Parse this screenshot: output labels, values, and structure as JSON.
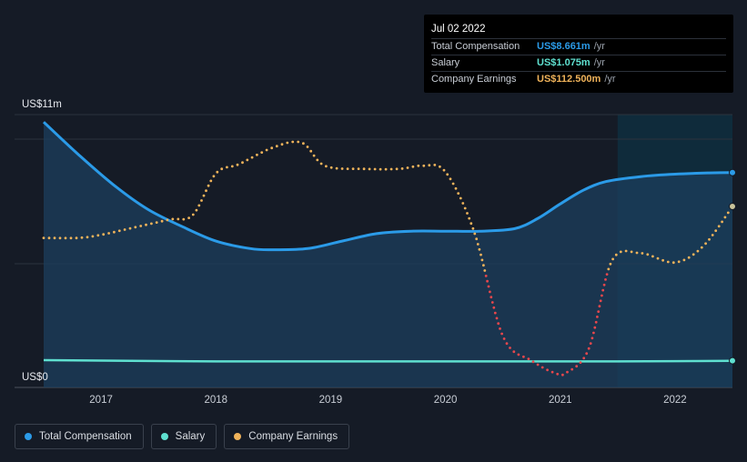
{
  "tooltip": {
    "date": "Jul 02 2022",
    "rows": [
      {
        "label": "Total Compensation",
        "value": "US$8.661m",
        "unit": "/yr",
        "color": "#2b9be8"
      },
      {
        "label": "Salary",
        "value": "US$1.075m",
        "unit": "/yr",
        "color": "#5fe0d0"
      },
      {
        "label": "Company Earnings",
        "value": "US$112.500m",
        "unit": "/yr",
        "color": "#f0b35a"
      }
    ]
  },
  "legend": [
    {
      "label": "Total Compensation",
      "color": "#2b9be8"
    },
    {
      "label": "Salary",
      "color": "#5fe0d0"
    },
    {
      "label": "Company Earnings",
      "color": "#f0b35a"
    }
  ],
  "chart_data": {
    "type": "line",
    "title": "",
    "xlabel": "",
    "ylabel": "",
    "ylim": [
      0,
      11
    ],
    "xlim": [
      2016.5,
      2022.5
    ],
    "y_tick_labels": {
      "top": "US$11m",
      "bottom": "US$0"
    },
    "x_ticks": [
      2017,
      2018,
      2019,
      2020,
      2021,
      2022
    ],
    "x_tick_labels": [
      "2017",
      "2018",
      "2019",
      "2020",
      "2021",
      "2022"
    ],
    "highlight_from": 2021.5,
    "series": [
      {
        "name": "Total Compensation",
        "unit": "US$m",
        "color": "#2b9be8",
        "style": "solid",
        "x": [
          2016.5,
          2016.8,
          2017.1,
          2017.4,
          2017.7,
          2018.0,
          2018.3,
          2018.5,
          2018.8,
          2019.1,
          2019.4,
          2019.7,
          2020.0,
          2020.3,
          2020.6,
          2020.8,
          2021.0,
          2021.2,
          2021.4,
          2021.7,
          2022.0,
          2022.3,
          2022.5
        ],
        "y": [
          10.7,
          9.4,
          8.2,
          7.2,
          6.5,
          5.9,
          5.6,
          5.55,
          5.6,
          5.9,
          6.2,
          6.3,
          6.3,
          6.3,
          6.4,
          6.8,
          7.4,
          7.95,
          8.3,
          8.5,
          8.6,
          8.65,
          8.661
        ]
      },
      {
        "name": "Salary",
        "unit": "US$m",
        "color": "#5fe0d0",
        "style": "solid",
        "x": [
          2016.5,
          2017.0,
          2018.0,
          2019.0,
          2020.0,
          2021.0,
          2021.5,
          2022.0,
          2022.5
        ],
        "y": [
          1.1,
          1.08,
          1.05,
          1.05,
          1.05,
          1.05,
          1.05,
          1.06,
          1.075
        ]
      },
      {
        "name": "Company Earnings",
        "unit": "US$m",
        "color": "#f0b35a",
        "negative_color": "#e8474c",
        "style": "dotted",
        "scale_note": "separate right-hand scale, values in US$m",
        "x": [
          2016.5,
          2016.8,
          2017.0,
          2017.3,
          2017.6,
          2017.8,
          2018.0,
          2018.2,
          2018.5,
          2018.75,
          2018.95,
          2019.3,
          2019.6,
          2019.8,
          2020.0,
          2020.25,
          2020.5,
          2020.75,
          2020.95,
          2021.05,
          2021.25,
          2021.45,
          2021.7,
          2022.0,
          2022.25,
          2022.5
        ],
        "y": [
          92,
          92,
          94,
          99,
          104,
          107,
          134,
          140,
          151,
          154,
          139,
          137,
          137,
          139,
          135,
          96,
          28,
          12,
          4,
          4,
          20,
          77,
          82,
          76,
          87,
          112.5
        ]
      }
    ]
  }
}
